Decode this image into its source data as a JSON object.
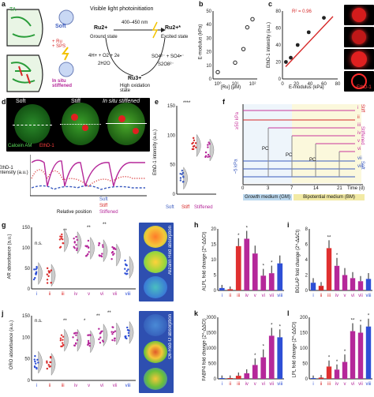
{
  "panel_labels": {
    "a": "a",
    "b": "b",
    "c": "c",
    "d": "d",
    "e": "e",
    "f": "f",
    "g": "g",
    "h": "h",
    "i": "i",
    "j": "j",
    "k": "k",
    "l": "l"
  },
  "panel_a": {
    "left_label": "TA",
    "soft_label": "Soft",
    "add_label": "+ Ru\n+ SPS",
    "stiff_label": "In situ\nstiffened",
    "light_title": "Visible light photoinitiation",
    "wavelength": "400–450 nm",
    "ground_state": "Ground state",
    "excited_state": "Excited state",
    "high_ox": "High oxidation\nstate",
    "ru2": "Ru2+",
    "ru2b": "Ru2+*",
    "ru3": "Ru3+",
    "rxn1": "4H+ + O2 + 2e",
    "rxn2": "2H2O",
    "rxn3": "SO4²⁻ + SO4•⁻",
    "rxn4": "S2O8²⁻"
  },
  "panel_b": {
    "ylabel": "E-modulus (kPa)",
    "xlabel": "[Ru] (μM)",
    "yticks": [
      "0",
      "10",
      "20",
      "30",
      "40",
      "50"
    ],
    "xticks": [
      "10⁰",
      "10¹",
      "10²"
    ]
  },
  "panel_c": {
    "r2": "R² = 0.96",
    "ylabel": "EthD-1 intensity (a.u.)",
    "xlabel": "E-modulus (kPa)",
    "yticks": [
      "0",
      "20",
      "40",
      "60",
      "80"
    ],
    "xticks": [
      "0",
      "20",
      "40",
      "60",
      "80"
    ],
    "legend": "EthD-1"
  },
  "panel_d": {
    "soft": "Soft",
    "stiff": "Stiff",
    "insitu": "In situ stiffened",
    "calcein": "Calcein AM",
    "ethd": "EthD-1",
    "ylabel": "EthD-1\nintensity (a.u.)",
    "xlabel": "Relative position",
    "xticks": [
      "0",
      "0.2",
      "0.4",
      "0.6",
      "0.8",
      "1"
    ],
    "legend": [
      "Soft",
      "Stiff",
      "Stiffened"
    ]
  },
  "panel_e": {
    "ylabel": "EthD-1 intensity (a.u.)",
    "sig": "****",
    "yticks": [
      "0",
      "50",
      "100",
      "150"
    ],
    "cats": [
      "Soft",
      "Stiff",
      "Stiffened"
    ]
  },
  "panel_f": {
    "kpa50": "≥50 kPa",
    "kpa5": "~5 kPa",
    "roman": [
      "i",
      "ii",
      "iii",
      "iv",
      "v",
      "vi",
      "vii",
      "viii"
    ],
    "pc": "PC",
    "stiff": "Stiff",
    "stiffened": "Stiffened",
    "soft": "Soft",
    "xticks": [
      "0",
      "3",
      "7",
      "14",
      "21",
      "Time (d)"
    ],
    "gm": "Growth medium (GM)",
    "bm": "Bipotential medium (BM)"
  },
  "panel_g": {
    "ylabel": "AR absorbance (a.u.)",
    "yticks": [
      "0",
      "50",
      "100",
      "150"
    ],
    "ns": "n.s.",
    "sig": [
      "**",
      "**",
      "**"
    ],
    "cats": [
      "i",
      "ii",
      "iii",
      "iv",
      "v",
      "vi",
      "vii",
      "viii"
    ],
    "stain": "Alizarin Red absorption"
  },
  "panel_h": {
    "ylabel": "ALPL fold change (2^-ΔΔCt)",
    "yticks": [
      "0",
      "5",
      "10",
      "15",
      "20"
    ],
    "cats": [
      "i",
      "ii",
      "iii",
      "iv",
      "v",
      "vi",
      "vii",
      "viii"
    ],
    "stars": [
      "",
      "",
      "*",
      "*",
      "",
      "*",
      "*",
      ""
    ]
  },
  "panel_i": {
    "ylabel": "BGLAP fold change (2^-ΔΔCt)",
    "yticks": [
      "0",
      "2",
      "4",
      "6",
      "8"
    ],
    "cats": [
      "i",
      "ii",
      "iii",
      "iv",
      "v",
      "vi",
      "vii",
      "viii"
    ],
    "stars": [
      "",
      "",
      "**",
      "*",
      "",
      "",
      "",
      ""
    ]
  },
  "panel_j": {
    "ylabel": "ORO absorbance (a.u.)",
    "yticks": [
      "0",
      "50",
      "100",
      "150"
    ],
    "ns": "n.s.",
    "sig": [
      "**",
      "*",
      "**",
      "**"
    ],
    "cats": [
      "i",
      "ii",
      "iii",
      "iv",
      "v",
      "vi",
      "vii",
      "viii"
    ],
    "stain": "Oil-Red-O absorption"
  },
  "panel_k": {
    "ylabel": "FABP4 fold change (2^-ΔΔCt)",
    "yticks": [
      "0",
      "500",
      "1000",
      "1500",
      "2000"
    ],
    "cats": [
      "i",
      "ii",
      "iii",
      "iv",
      "v",
      "vi",
      "vii",
      "viii"
    ],
    "stars": [
      "",
      "",
      "",
      "",
      "*",
      "*",
      "*",
      "*"
    ]
  },
  "panel_l": {
    "ylabel": "LPL fold change (2^-ΔΔCt)",
    "yticks": [
      "0",
      "50",
      "100",
      "150",
      "200"
    ],
    "cats": [
      "i",
      "ii",
      "iii",
      "iv",
      "v",
      "vi",
      "vii",
      "viii"
    ],
    "stars": [
      "",
      "",
      "*",
      "*",
      "*",
      "**",
      "*",
      "*"
    ]
  },
  "colors": {
    "soft": "#3b5bbf",
    "stiff": "#d62828",
    "stiffened": "#b5289a",
    "purple": "#b23fa6",
    "magenta": "#c8369c"
  },
  "chart_data": [
    {
      "type": "scatter",
      "panel": "b",
      "xlabel": "[Ru] (μM)",
      "ylabel": "E-modulus (kPa)",
      "x": [
        1,
        10,
        30,
        50,
        100
      ],
      "values": [
        5,
        12,
        22,
        38,
        44
      ]
    },
    {
      "type": "scatter",
      "panel": "c",
      "xlabel": "E-modulus (kPa)",
      "ylabel": "EthD-1 intensity (a.u.)",
      "x": [
        5,
        12,
        22,
        38,
        60
      ],
      "values": [
        20,
        25,
        40,
        55,
        72
      ],
      "r2": 0.96
    },
    {
      "type": "bar",
      "panel": "h",
      "categories": [
        "i",
        "ii",
        "iii",
        "iv",
        "v",
        "vi",
        "vii",
        "viii"
      ],
      "values": [
        1,
        0.5,
        18,
        21,
        15,
        6,
        7,
        11
      ],
      "ylabel": "ALPL fold change (2^-ΔΔCt)"
    },
    {
      "type": "bar",
      "panel": "i",
      "categories": [
        "i",
        "ii",
        "iii",
        "iv",
        "v",
        "vi",
        "vii",
        "viii"
      ],
      "values": [
        1,
        0.6,
        5.5,
        3.2,
        2,
        1.6,
        1.2,
        1.5
      ],
      "ylabel": "BGLAP fold change (2^-ΔΔCt)"
    },
    {
      "type": "bar",
      "panel": "k",
      "categories": [
        "i",
        "ii",
        "iii",
        "iv",
        "v",
        "vi",
        "vii",
        "viii"
      ],
      "values": [
        20,
        15,
        100,
        180,
        450,
        700,
        1400,
        1350
      ],
      "ylabel": "FABP4 fold change (2^-ΔΔCt)"
    },
    {
      "type": "bar",
      "panel": "l",
      "categories": [
        "i",
        "ii",
        "iii",
        "iv",
        "v",
        "vi",
        "vii",
        "viii"
      ],
      "values": [
        2,
        4,
        40,
        30,
        55,
        155,
        150,
        170
      ],
      "ylabel": "LPL fold change (2^-ΔΔCt)"
    }
  ]
}
